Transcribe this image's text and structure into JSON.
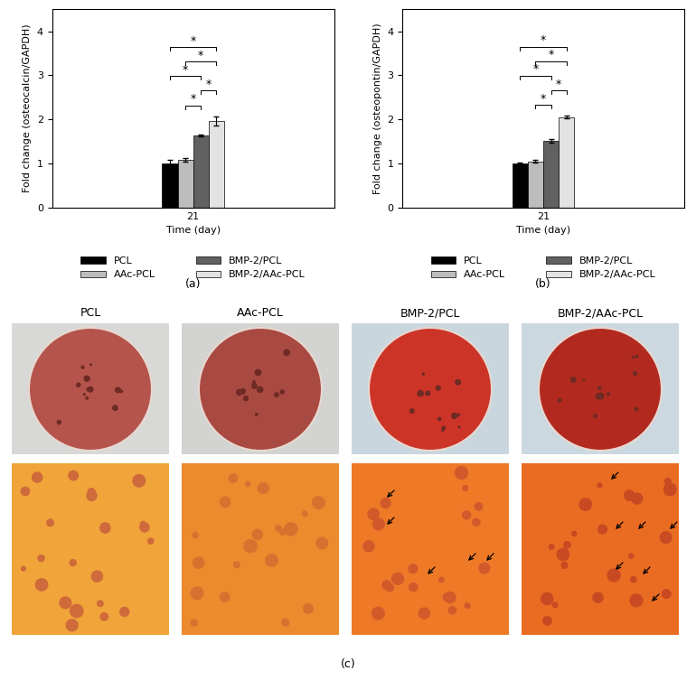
{
  "chart_data": [
    {
      "type": "bar",
      "panel_label": "(a)",
      "categories": [
        "21"
      ],
      "xlabel": "Time (day)",
      "ylabel": "Fold change (osteocalcin/GAPDH)",
      "ylim": [
        0,
        4.5
      ],
      "yticks": [
        0,
        1,
        2,
        3,
        4
      ],
      "legend": "below",
      "series": [
        {
          "name": "PCL",
          "color": "#000000",
          "values": [
            1.0
          ],
          "errors": [
            0.08
          ]
        },
        {
          "name": "AAc-PCL",
          "color": "#bdbdbd",
          "values": [
            1.08
          ],
          "errors": [
            0.04
          ]
        },
        {
          "name": "BMP-2/PCL",
          "color": "#616161",
          "values": [
            1.63
          ],
          "errors": [
            0.02
          ]
        },
        {
          "name": "BMP-2/AAc-PCL",
          "color": "#e3e3e3",
          "values": [
            1.97
          ],
          "errors": [
            0.1
          ]
        }
      ],
      "significance": [
        {
          "pair": [
            1,
            2
          ],
          "label": "*"
        },
        {
          "pair": [
            2,
            3
          ],
          "label": "*"
        },
        {
          "pair": [
            0,
            2
          ],
          "label": "*"
        },
        {
          "pair": [
            1,
            3
          ],
          "label": "*"
        },
        {
          "pair": [
            0,
            3
          ],
          "label": "*"
        }
      ]
    },
    {
      "type": "bar",
      "panel_label": "(b)",
      "categories": [
        "21"
      ],
      "xlabel": "Time (day)",
      "ylabel": "Fold change (osteopontin/GAPDH)",
      "ylim": [
        0,
        4.5
      ],
      "yticks": [
        0,
        1,
        2,
        3,
        4
      ],
      "legend": "below",
      "series": [
        {
          "name": "PCL",
          "color": "#000000",
          "values": [
            1.0
          ],
          "errors": [
            0.02
          ]
        },
        {
          "name": "AAc-PCL",
          "color": "#bdbdbd",
          "values": [
            1.05
          ],
          "errors": [
            0.03
          ]
        },
        {
          "name": "BMP-2/PCL",
          "color": "#616161",
          "values": [
            1.52
          ],
          "errors": [
            0.04
          ]
        },
        {
          "name": "BMP-2/AAc-PCL",
          "color": "#e3e3e3",
          "values": [
            2.05
          ],
          "errors": [
            0.03
          ]
        }
      ],
      "significance": [
        {
          "pair": [
            1,
            2
          ],
          "label": "*"
        },
        {
          "pair": [
            2,
            3
          ],
          "label": "*"
        },
        {
          "pair": [
            0,
            2
          ],
          "label": "*"
        },
        {
          "pair": [
            1,
            3
          ],
          "label": "*"
        },
        {
          "pair": [
            0,
            3
          ],
          "label": "*"
        }
      ]
    }
  ],
  "panel_c": {
    "label": "(c)",
    "titles": [
      "PCL",
      "AAc-PCL",
      "BMP-2/PCL",
      "BMP-2/AAc-PCL"
    ]
  }
}
